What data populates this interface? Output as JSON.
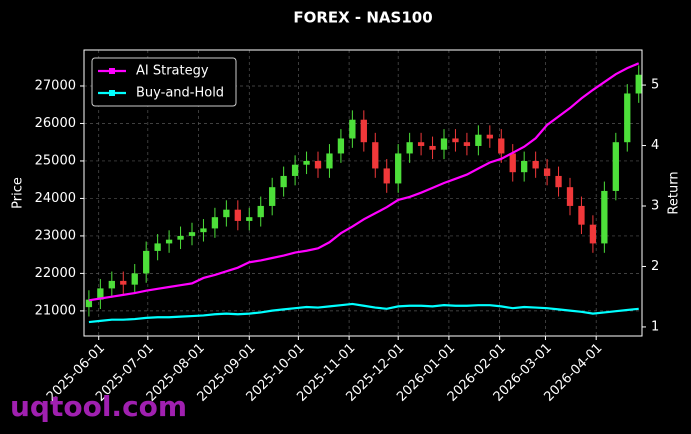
{
  "chart_data": {
    "type": "candlestick_returns",
    "title": "FOREX - NAS100",
    "ylabel": "Price",
    "y2label": "Return",
    "x": [
      "2025-05-26",
      "2025-06-02",
      "2025-06-09",
      "2025-06-16",
      "2025-06-23",
      "2025-06-30",
      "2025-07-07",
      "2025-07-14",
      "2025-07-21",
      "2025-07-28",
      "2025-08-04",
      "2025-08-11",
      "2025-08-18",
      "2025-08-25",
      "2025-09-01",
      "2025-09-08",
      "2025-09-15",
      "2025-09-22",
      "2025-09-29",
      "2025-10-06",
      "2025-10-13",
      "2025-10-20",
      "2025-10-27",
      "2025-11-03",
      "2025-11-10",
      "2025-11-17",
      "2025-11-24",
      "2025-12-01",
      "2025-12-08",
      "2025-12-15",
      "2025-12-22",
      "2025-12-29",
      "2026-01-05",
      "2026-01-12",
      "2026-01-19",
      "2026-01-26",
      "2026-02-02",
      "2026-02-09",
      "2026-02-16",
      "2026-02-23",
      "2026-03-02",
      "2026-03-09",
      "2026-03-16",
      "2026-03-23",
      "2026-03-30",
      "2026-04-06",
      "2026-04-13",
      "2026-04-20",
      "2026-04-27"
    ],
    "open": [
      21100,
      21300,
      21600,
      21800,
      21700,
      22000,
      22600,
      22800,
      22900,
      23000,
      23100,
      23200,
      23500,
      23700,
      23400,
      23500,
      23800,
      24300,
      24600,
      24900,
      25000,
      24800,
      25200,
      25600,
      26100,
      25500,
      24800,
      24400,
      25200,
      25500,
      25400,
      25300,
      25600,
      25500,
      25400,
      25700,
      25600,
      25200,
      24700,
      25000,
      24800,
      24600,
      24300,
      23800,
      23300,
      22800,
      24200,
      25500,
      26800
    ],
    "high": [
      21550,
      21850,
      22050,
      22050,
      22250,
      22850,
      23050,
      23150,
      23250,
      23350,
      23450,
      23750,
      23950,
      23950,
      23750,
      24050,
      24550,
      24850,
      25150,
      25250,
      25250,
      25450,
      25850,
      26350,
      26350,
      25750,
      25050,
      25450,
      25750,
      25750,
      25650,
      25850,
      25850,
      25750,
      25950,
      25950,
      25850,
      25450,
      25250,
      25250,
      25050,
      24850,
      24550,
      24050,
      23550,
      24450,
      25750,
      27050,
      27550
    ],
    "low": [
      20850,
      21050,
      21350,
      21450,
      21450,
      21750,
      22350,
      22550,
      22650,
      22750,
      22850,
      22950,
      23250,
      23150,
      23150,
      23250,
      23550,
      24050,
      24350,
      24650,
      24550,
      24550,
      24950,
      25350,
      25250,
      24550,
      24150,
      24150,
      24950,
      25150,
      25050,
      25050,
      25250,
      25150,
      25150,
      25350,
      24950,
      24450,
      24450,
      24550,
      24350,
      24050,
      23550,
      23050,
      22550,
      22550,
      23950,
      25250,
      26550
    ],
    "close": [
      21300,
      21600,
      21800,
      21700,
      22000,
      22600,
      22800,
      22900,
      23000,
      23100,
      23200,
      23500,
      23700,
      23400,
      23500,
      23800,
      24300,
      24600,
      24900,
      25000,
      24800,
      25200,
      25600,
      26100,
      25500,
      24800,
      24400,
      25200,
      25500,
      25400,
      25300,
      25600,
      25500,
      25400,
      25700,
      25600,
      25200,
      24700,
      25000,
      24800,
      24600,
      24300,
      23800,
      23300,
      22800,
      24200,
      25500,
      26800,
      27300
    ],
    "up_color": "#4ddf3a",
    "down_color": "#f0383a",
    "series": [
      {
        "name": "AI Strategy",
        "color": "#ff00ff",
        "axis": "y2",
        "values": [
          1.44,
          1.47,
          1.5,
          1.53,
          1.56,
          1.6,
          1.63,
          1.66,
          1.69,
          1.72,
          1.81,
          1.86,
          1.92,
          1.98,
          2.07,
          2.1,
          2.14,
          2.18,
          2.23,
          2.26,
          2.3,
          2.4,
          2.55,
          2.66,
          2.78,
          2.88,
          2.98,
          3.1,
          3.15,
          3.22,
          3.3,
          3.38,
          3.45,
          3.52,
          3.62,
          3.72,
          3.78,
          3.88,
          3.98,
          4.12,
          4.34,
          4.48,
          4.62,
          4.78,
          4.92,
          5.05,
          5.18,
          5.28,
          5.36
        ]
      },
      {
        "name": "Buy-and-Hold",
        "color": "#00ffff",
        "axis": "y2",
        "values": [
          1.08,
          1.1,
          1.12,
          1.12,
          1.13,
          1.15,
          1.16,
          1.16,
          1.17,
          1.18,
          1.19,
          1.21,
          1.22,
          1.21,
          1.22,
          1.24,
          1.27,
          1.29,
          1.31,
          1.33,
          1.32,
          1.34,
          1.36,
          1.38,
          1.35,
          1.32,
          1.3,
          1.34,
          1.35,
          1.35,
          1.34,
          1.36,
          1.35,
          1.35,
          1.36,
          1.36,
          1.34,
          1.31,
          1.33,
          1.32,
          1.31,
          1.29,
          1.27,
          1.25,
          1.22,
          1.24,
          1.26,
          1.28,
          1.3
        ]
      }
    ],
    "xlim": [
      "2025-05-23",
      "2026-04-29"
    ],
    "xticks": [
      "2025-06-01",
      "2025-07-01",
      "2025-08-01",
      "2025-09-01",
      "2025-10-01",
      "2025-11-01",
      "2025-12-01",
      "2026-01-01",
      "2026-02-01",
      "2026-03-01",
      "2026-04-01"
    ],
    "ylim": [
      20330,
      27960
    ],
    "yticks": [
      21000,
      22000,
      23000,
      24000,
      25000,
      26000,
      27000
    ],
    "y2lim": [
      0.85,
      5.58
    ],
    "y2ticks": [
      1,
      2,
      3,
      4,
      5
    ],
    "grid": true,
    "legend": "upper-left",
    "watermark": "uqtool.com"
  }
}
